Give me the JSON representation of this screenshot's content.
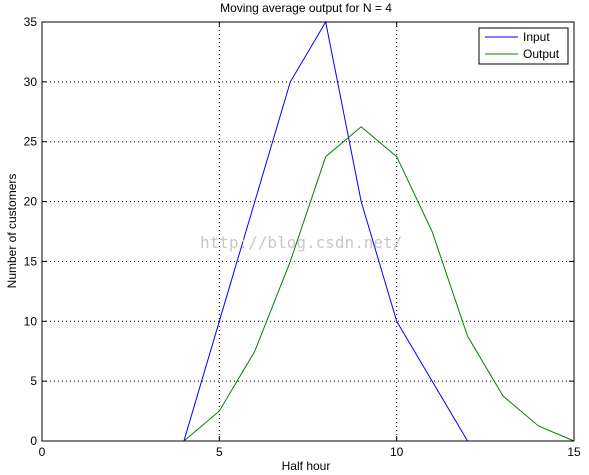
{
  "chart_data": {
    "type": "line",
    "title": "Moving average output for N = 4",
    "xlabel": "Half hour",
    "ylabel": "Number of customers",
    "xlim": [
      0,
      15
    ],
    "ylim": [
      0,
      35
    ],
    "xticks": [
      0,
      5,
      10,
      15
    ],
    "yticks": [
      0,
      5,
      10,
      15,
      20,
      25,
      30,
      35
    ],
    "grid": true,
    "legend_position": "top-right",
    "series": [
      {
        "name": "Input",
        "color": "#0000ff",
        "x": [
          1,
          2,
          3,
          4,
          5,
          6,
          7,
          8,
          9,
          10,
          11,
          12,
          13,
          14,
          15
        ],
        "y": [
          0,
          0,
          0,
          0,
          10,
          20,
          30,
          35,
          20,
          10,
          5,
          0,
          0,
          0,
          0
        ]
      },
      {
        "name": "Output",
        "color": "#008000",
        "x": [
          1,
          2,
          3,
          4,
          5,
          6,
          7,
          8,
          9,
          10,
          11,
          12,
          13,
          14,
          15
        ],
        "y": [
          0,
          0,
          0,
          0,
          2.5,
          7.5,
          15,
          23.75,
          26.25,
          23.75,
          17.5,
          8.75,
          3.75,
          1.25,
          0
        ]
      }
    ]
  },
  "watermark": "http://blog.csdn.net/"
}
